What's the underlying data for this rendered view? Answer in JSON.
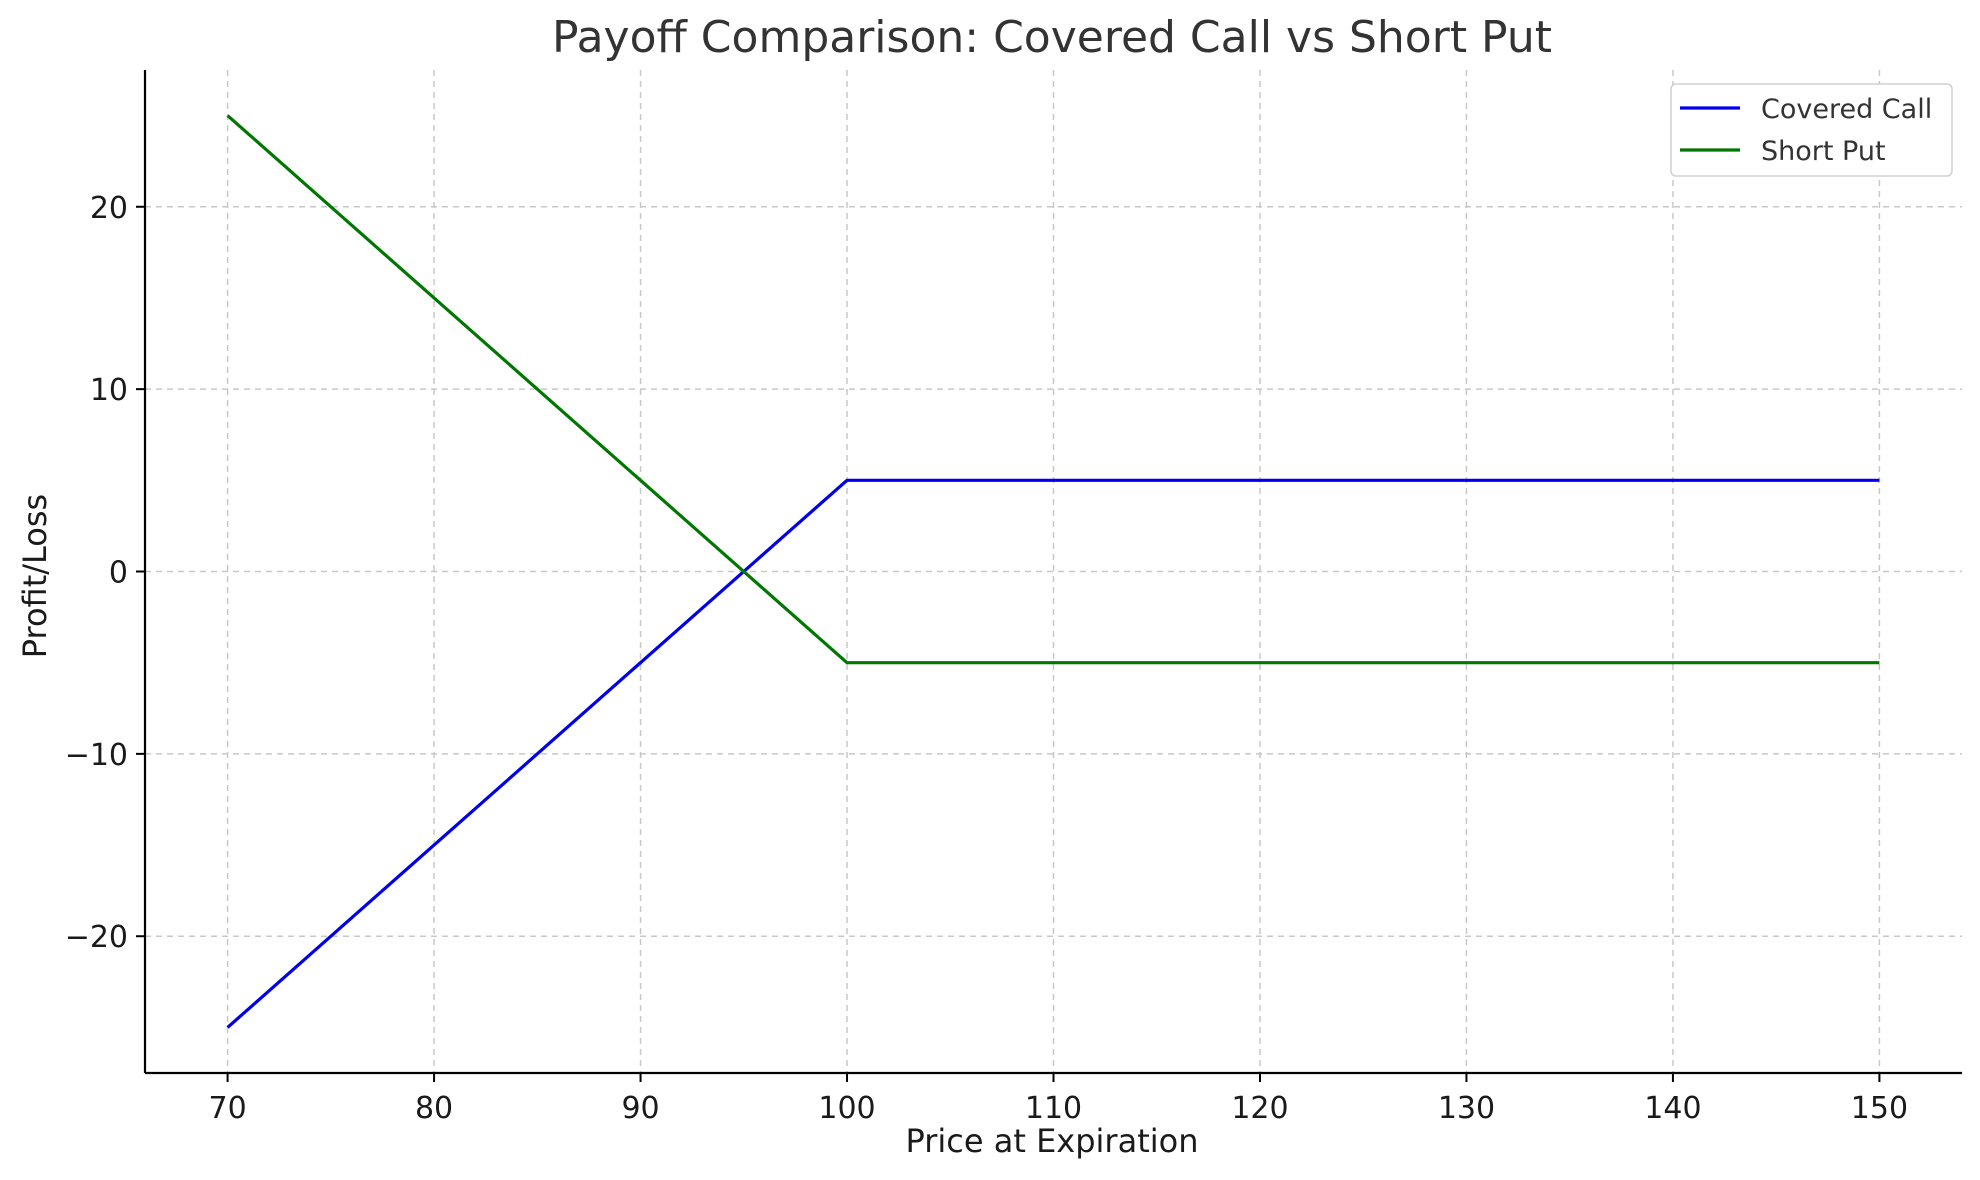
{
  "chart_data": {
    "type": "line",
    "title": "Payoff Comparison: Covered Call vs Short Put",
    "xlabel": "Price at Expiration",
    "ylabel": "Profit/Loss",
    "xlim": [
      66,
      154
    ],
    "ylim": [
      -27.5,
      27.5
    ],
    "xticks": [
      70,
      80,
      90,
      100,
      110,
      120,
      130,
      140,
      150
    ],
    "yticks": [
      -20,
      -10,
      0,
      10,
      20
    ],
    "ytick_labels": [
      "−20",
      "−10",
      "0",
      "10",
      "20"
    ],
    "grid": true,
    "legend_position": "top-right",
    "series": [
      {
        "name": "Covered Call",
        "color": "#0000ee",
        "x": [
          70,
          100,
          150
        ],
        "y": [
          -25,
          5,
          5
        ]
      },
      {
        "name": "Short Put",
        "color": "#007700",
        "x": [
          70,
          100,
          150
        ],
        "y": [
          25,
          -5,
          -5
        ]
      }
    ]
  }
}
